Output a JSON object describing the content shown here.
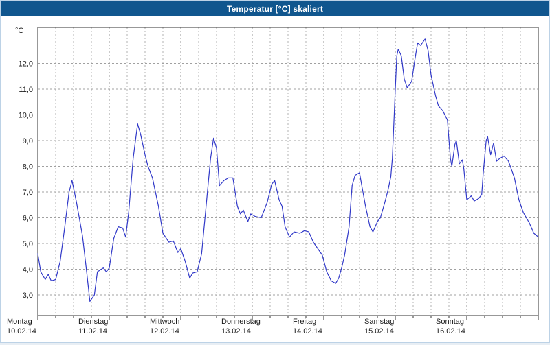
{
  "window": {
    "title": "Temperatur [°C] skaliert"
  },
  "colors": {
    "titlebar": "#10568e",
    "title_text": "#ffffff",
    "frame": "#bcd2e6",
    "plot_bg": "#ffffff",
    "axis": "#303030",
    "grid": "#909090",
    "line": "#3038c8",
    "label_text": "#1a1a1a"
  },
  "chart_data": {
    "type": "line",
    "title": "Temperatur [°C] skaliert",
    "y_unit_label": "°C",
    "ylim": [
      2.2,
      13.4
    ],
    "y_ticks": [
      3,
      4,
      5,
      6,
      7,
      8,
      9,
      10,
      11,
      12
    ],
    "y_tick_labels": [
      "3,0",
      "4,0",
      "5,0",
      "6,0",
      "7,0",
      "8,0",
      "9,0",
      "10,0",
      "11,0",
      "12,0"
    ],
    "x_range_hours": [
      0,
      168
    ],
    "x_day_labels": [
      {
        "name": "Montag",
        "date": "10.02.14"
      },
      {
        "name": "Dienstag",
        "date": "11.02.14"
      },
      {
        "name": "Mittwoch",
        "date": "12.02.14"
      },
      {
        "name": "Donnerstag",
        "date": "13.02.14"
      },
      {
        "name": "Freitag",
        "date": "14.02.14"
      },
      {
        "name": "Samstag",
        "date": "15.02.14"
      },
      {
        "name": "Sonntag",
        "date": "16.02.14"
      }
    ],
    "grid": {
      "horizontal_every": 1,
      "vertical_every_hours": 6
    },
    "legend": "none",
    "series": [
      {
        "name": "Temperatur",
        "color": "#3038c8",
        "points": [
          [
            0,
            4.6
          ],
          [
            1,
            3.9
          ],
          [
            2.5,
            3.6
          ],
          [
            3.5,
            3.8
          ],
          [
            4.5,
            3.55
          ],
          [
            6,
            3.6
          ],
          [
            7.5,
            4.3
          ],
          [
            9,
            5.6
          ],
          [
            10.5,
            7.0
          ],
          [
            11.5,
            7.45
          ],
          [
            13,
            6.6
          ],
          [
            15,
            5.3
          ],
          [
            16.5,
            3.8
          ],
          [
            17.5,
            2.75
          ],
          [
            19,
            3.0
          ],
          [
            20,
            3.9
          ],
          [
            22,
            4.05
          ],
          [
            23,
            3.9
          ],
          [
            24,
            4.05
          ],
          [
            25.5,
            5.2
          ],
          [
            27,
            5.65
          ],
          [
            28.5,
            5.6
          ],
          [
            29.5,
            5.25
          ],
          [
            30.5,
            6.2
          ],
          [
            32,
            8.3
          ],
          [
            33.5,
            9.65
          ],
          [
            34.5,
            9.25
          ],
          [
            36,
            8.45
          ],
          [
            37,
            8.0
          ],
          [
            38.5,
            7.55
          ],
          [
            40.5,
            6.45
          ],
          [
            42,
            5.4
          ],
          [
            44,
            5.05
          ],
          [
            45.5,
            5.1
          ],
          [
            47,
            4.65
          ],
          [
            48,
            4.8
          ],
          [
            49.5,
            4.3
          ],
          [
            51,
            3.65
          ],
          [
            52,
            3.85
          ],
          [
            53.5,
            3.9
          ],
          [
            55,
            4.6
          ],
          [
            56.5,
            6.45
          ],
          [
            58,
            8.3
          ],
          [
            59,
            9.1
          ],
          [
            60,
            8.7
          ],
          [
            61,
            7.25
          ],
          [
            62.5,
            7.45
          ],
          [
            64,
            7.55
          ],
          [
            65.5,
            7.55
          ],
          [
            67,
            6.45
          ],
          [
            68,
            6.15
          ],
          [
            69,
            6.3
          ],
          [
            70.5,
            5.85
          ],
          [
            71.5,
            6.15
          ],
          [
            73,
            6.05
          ],
          [
            75,
            6.0
          ],
          [
            77,
            6.6
          ],
          [
            78.5,
            7.3
          ],
          [
            79.5,
            7.45
          ],
          [
            81,
            6.7
          ],
          [
            82,
            6.45
          ],
          [
            83,
            5.65
          ],
          [
            84.5,
            5.25
          ],
          [
            86,
            5.45
          ],
          [
            88,
            5.4
          ],
          [
            89.5,
            5.5
          ],
          [
            91,
            5.45
          ],
          [
            92.5,
            5.05
          ],
          [
            94,
            4.8
          ],
          [
            95.5,
            4.55
          ],
          [
            97,
            3.9
          ],
          [
            98.5,
            3.55
          ],
          [
            100,
            3.45
          ],
          [
            101,
            3.65
          ],
          [
            102,
            4.05
          ],
          [
            103,
            4.55
          ],
          [
            104.5,
            5.65
          ],
          [
            105.5,
            7.25
          ],
          [
            106.5,
            7.65
          ],
          [
            108,
            7.75
          ],
          [
            109,
            7.1
          ],
          [
            110,
            6.45
          ],
          [
            111.5,
            5.65
          ],
          [
            112.5,
            5.45
          ],
          [
            114,
            5.85
          ],
          [
            115,
            6.0
          ],
          [
            116.5,
            6.6
          ],
          [
            117.5,
            7.05
          ],
          [
            118.5,
            7.6
          ],
          [
            119,
            8.3
          ],
          [
            120,
            11.0
          ],
          [
            120.5,
            12.3
          ],
          [
            121,
            12.55
          ],
          [
            122,
            12.3
          ],
          [
            123,
            11.4
          ],
          [
            124,
            11.05
          ],
          [
            125.5,
            11.3
          ],
          [
            126.5,
            12.1
          ],
          [
            127.5,
            12.8
          ],
          [
            128.5,
            12.7
          ],
          [
            130,
            12.95
          ],
          [
            131,
            12.5
          ],
          [
            132,
            11.55
          ],
          [
            133.5,
            10.75
          ],
          [
            134.5,
            10.35
          ],
          [
            136,
            10.15
          ],
          [
            137.5,
            9.8
          ],
          [
            138.5,
            8.3
          ],
          [
            139,
            8.0
          ],
          [
            140,
            8.85
          ],
          [
            140.5,
            9.0
          ],
          [
            141.5,
            8.1
          ],
          [
            142.5,
            8.25
          ],
          [
            143,
            7.9
          ],
          [
            144,
            6.7
          ],
          [
            145.5,
            6.85
          ],
          [
            146.5,
            6.65
          ],
          [
            148,
            6.75
          ],
          [
            149,
            6.9
          ],
          [
            149.5,
            7.7
          ],
          [
            150.5,
            9.0
          ],
          [
            151,
            9.15
          ],
          [
            152,
            8.45
          ],
          [
            153,
            8.9
          ],
          [
            154,
            8.2
          ],
          [
            155,
            8.3
          ],
          [
            156.5,
            8.4
          ],
          [
            158,
            8.2
          ],
          [
            160,
            7.55
          ],
          [
            161.5,
            6.7
          ],
          [
            163,
            6.2
          ],
          [
            165,
            5.8
          ],
          [
            166.5,
            5.4
          ],
          [
            168,
            5.25
          ]
        ]
      }
    ]
  }
}
